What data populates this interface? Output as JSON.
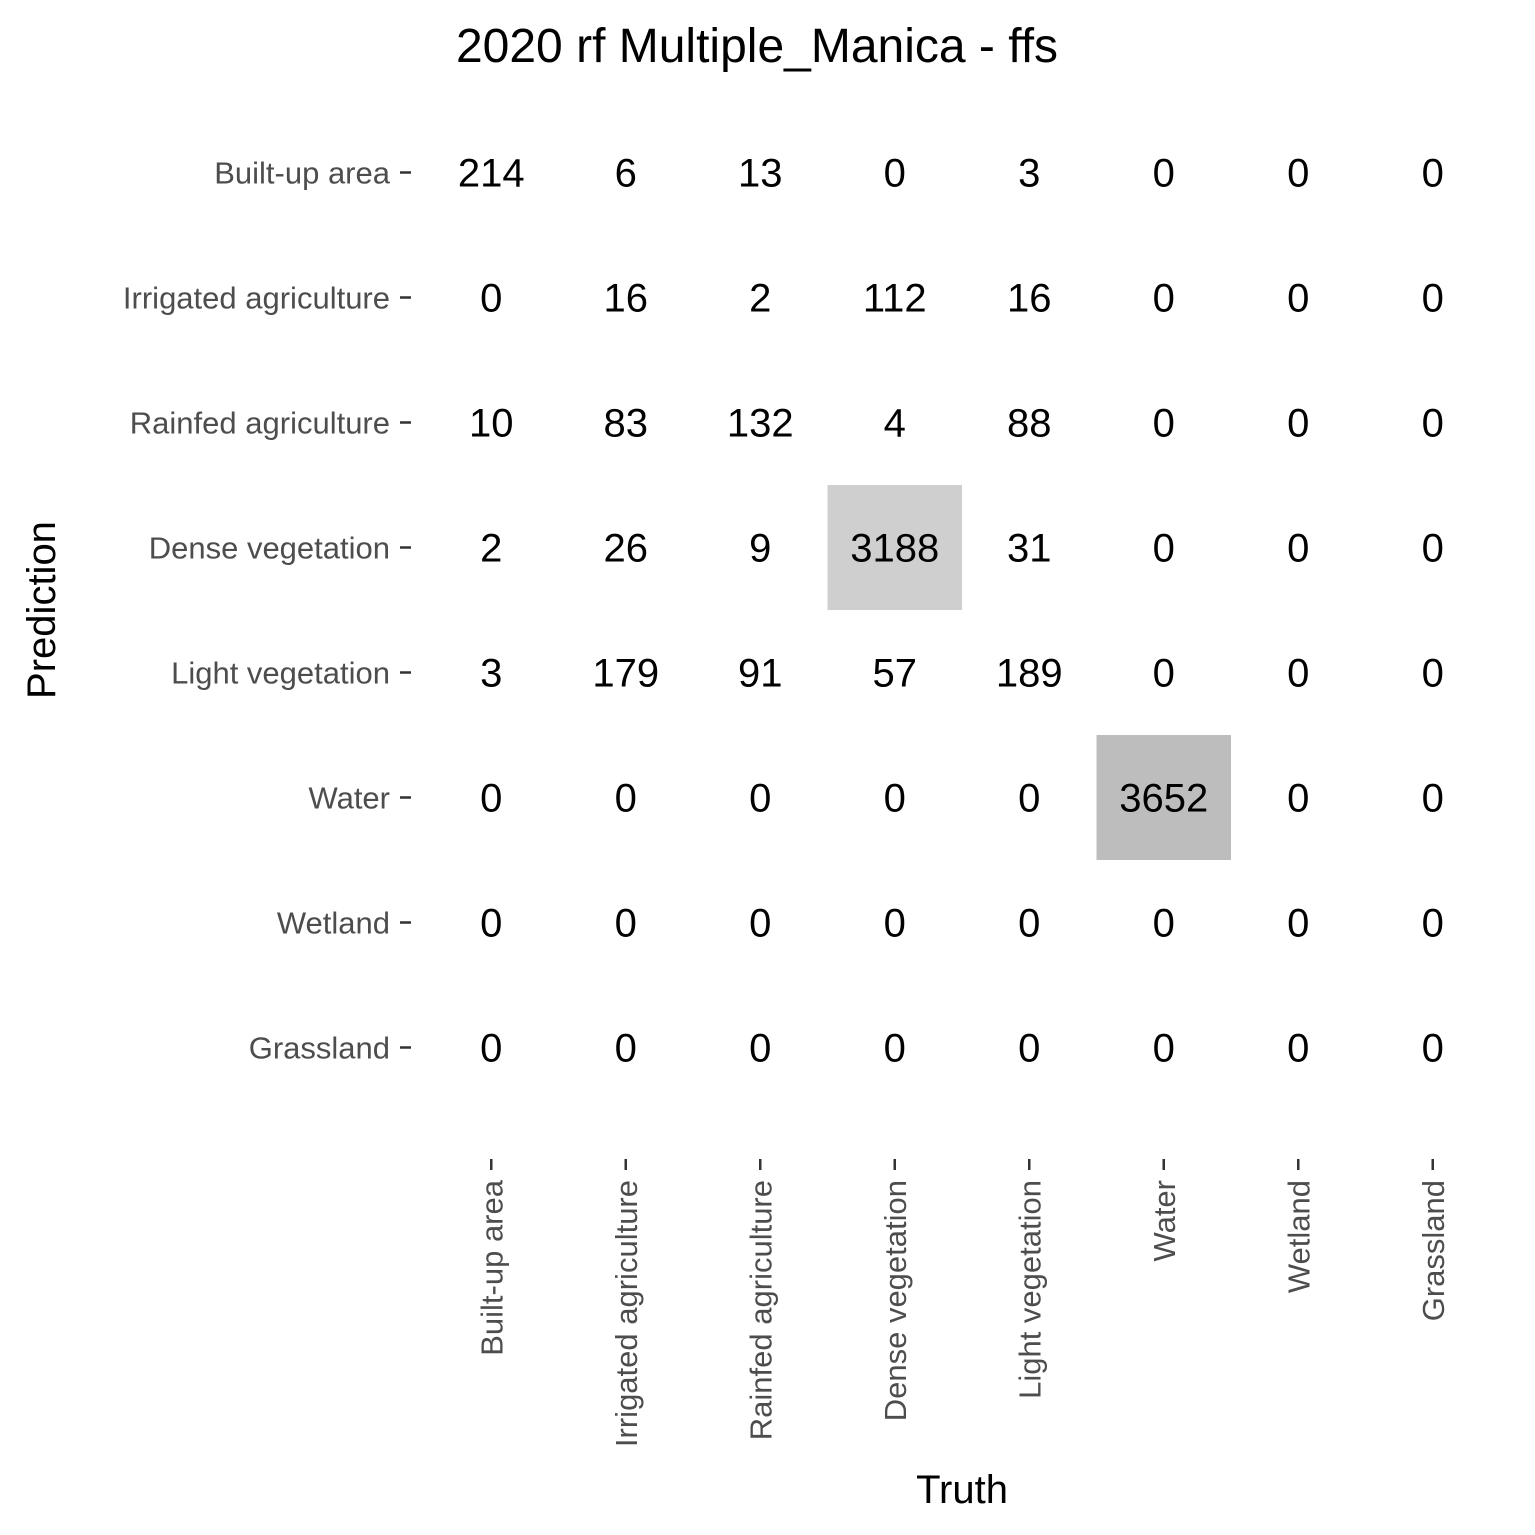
{
  "chart_data": {
    "type": "heatmap",
    "title": "2020 rf Multiple_Manica - ffs",
    "xlabel": "Truth",
    "ylabel": "Prediction",
    "categories": [
      "Built-up area",
      "Irrigated agriculture",
      "Rainfed agriculture",
      "Dense vegetation",
      "Light vegetation",
      "Water",
      "Wetland",
      "Grassland"
    ],
    "x_categories": [
      "Built-up area",
      "Irrigated agriculture",
      "Rainfed agriculture",
      "Dense vegetation",
      "Light vegetation",
      "Water",
      "Wetland",
      "Grassland"
    ],
    "y_categories": [
      "Built-up area",
      "Irrigated agriculture",
      "Rainfed agriculture",
      "Dense vegetation",
      "Light vegetation",
      "Water",
      "Wetland",
      "Grassland"
    ],
    "values": [
      [
        214,
        6,
        13,
        0,
        3,
        0,
        0,
        0
      ],
      [
        0,
        16,
        2,
        112,
        16,
        0,
        0,
        0
      ],
      [
        10,
        83,
        132,
        4,
        88,
        0,
        0,
        0
      ],
      [
        2,
        26,
        9,
        3188,
        31,
        0,
        0,
        0
      ],
      [
        3,
        179,
        91,
        57,
        189,
        0,
        0,
        0
      ],
      [
        0,
        0,
        0,
        0,
        0,
        3652,
        0,
        0
      ],
      [
        0,
        0,
        0,
        0,
        0,
        0,
        0,
        0
      ],
      [
        0,
        0,
        0,
        0,
        0,
        0,
        0,
        0
      ]
    ],
    "color_low": "#ffffff",
    "color_high": "#808080",
    "grid": false,
    "legend": "none"
  }
}
